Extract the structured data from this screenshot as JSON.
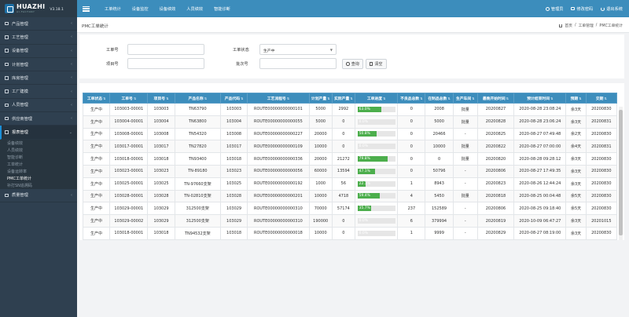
{
  "brand": {
    "name": "HUAZHI",
    "sub": "AI-FACTORY",
    "version": "V3.18.1"
  },
  "topnav": [
    "工单统计",
    "设备监控",
    "设备绩效",
    "人员绩效",
    "智能诊断"
  ],
  "user": {
    "name": "管理员",
    "change_password": "修改密码",
    "logout": "退出系统"
  },
  "sidebar": {
    "items_top": [
      "产品管理",
      "工艺管理",
      "设备管理",
      "计划管理",
      "库房管理",
      "工厂建模",
      "人员管理",
      "供应商管理"
    ],
    "active": "报表管理",
    "subitems": [
      "设备绩效",
      "人员绩效",
      "智能诊断",
      "工单统计",
      "设备运转率",
      "PMC工单统计",
      "补打SN追溯码"
    ],
    "active_sub": "PMC工单统计",
    "items_bottom": [
      "质量管理"
    ]
  },
  "page": {
    "title": "PMC工单统计",
    "breadcrumb": [
      "首页",
      "工单管理",
      "PMC工单统计"
    ]
  },
  "filter": {
    "work_order_no": "工单号",
    "work_order_status": "工单状态",
    "status_value": "生产中",
    "project_no": "项目号",
    "batch_no": "批次号",
    "query": "查询",
    "clear": "清空"
  },
  "colors": {
    "accent": "#3c8dbc",
    "sidebar": "#2f4050",
    "progress": "#4cae4c"
  },
  "table": {
    "headers": [
      "工单状态",
      "工单号",
      "项目号",
      "产品名称",
      "产品代码",
      "工艺流程号",
      "计划产量",
      "实际产量",
      "工单进度",
      "不良品总数",
      "在制品总数",
      "生产车间",
      "最晚开始时间",
      "预计结束时间",
      "预期",
      "交期"
    ],
    "rows": [
      [
        "生产中",
        "103003-00001",
        "103003",
        "TN63790",
        "103003",
        "ROUTE00000000000101",
        "5000",
        "2992",
        {
          "pct": 0.63,
          "label": "63.0%"
        },
        "0",
        "2008",
        "批量",
        "20200827",
        "2020-08-28 23:08:24",
        "余3天",
        "20200830"
      ],
      [
        "生产中",
        "103004-00001",
        "103004",
        "TN63800",
        "103004",
        "ROUTE00000000000055",
        "5000",
        "0",
        {
          "pct": 0.0,
          "label": "0.0%"
        },
        "0",
        "5000",
        "批量",
        "20200828",
        "2020-08-28 23:06:24",
        "余3天",
        "20200831"
      ],
      [
        "生产中",
        "103008-00001",
        "103008",
        "TN54320",
        "103008",
        "ROUTE00000000000227",
        "20000",
        "0",
        {
          "pct": 0.508,
          "label": "50.8%"
        },
        "0",
        "20466",
        "-",
        "20200825",
        "2020-08-27 07:49:48",
        "余2天",
        "20200830"
      ],
      [
        "生产中",
        "103017-00001",
        "103017",
        "TN27820",
        "103017",
        "ROUTE00000000000109",
        "10000",
        "0",
        {
          "pct": 0.0,
          "label": "0.0%"
        },
        "0",
        "10000",
        "批量",
        "20200822",
        "2020-08-27 07:00:00",
        "余4天",
        "20200831"
      ],
      [
        "生产中",
        "103018-00001",
        "103018",
        "TN93400",
        "103018",
        "ROUTE00000000000336",
        "20000",
        "21272",
        {
          "pct": 0.798,
          "label": "79.8%"
        },
        "0",
        "0",
        "批量",
        "20200820",
        "2020-08-28 09:28:12",
        "余3天",
        "20200830"
      ],
      [
        "生产中",
        "103023-00001",
        "103023",
        "TN-89180",
        "103023",
        "ROUTE00000000000056",
        "60000",
        "13594",
        {
          "pct": 0.471,
          "label": "47.1%"
        },
        "0",
        "50796",
        "-",
        "20200806",
        "2020-08-27 17:49:35",
        "余3天",
        "20200830"
      ],
      [
        "生产中",
        "103025-00001",
        "103025",
        "TN-97660支架",
        "103025",
        "ROUTE00000000000192",
        "1000",
        "56",
        {
          "pct": 0.22,
          "label": "22.1%"
        },
        "1",
        "8943",
        "-",
        "20200823",
        "2020-08-26 12:44:24",
        "余3天",
        "20200830"
      ],
      [
        "生产中",
        "103028-00001",
        "103028",
        "TN-02810支架",
        "103028",
        "ROUTE00000000000201",
        "10000",
        "4718",
        {
          "pct": 0.594,
          "label": "59.4%"
        },
        "4",
        "5450",
        "批量",
        "20200818",
        "2020-08-25 00:04:48",
        "余5天",
        "20200830"
      ],
      [
        "生产中",
        "103029-00001",
        "103029",
        "312500支架",
        "103029",
        "ROUTE00000000000310",
        "70000",
        "57174",
        {
          "pct": 0.357,
          "label": "35.7%"
        },
        "237",
        "152589",
        "-",
        "20200806",
        "2020-08-25 09:18:40",
        "余5天",
        "20200830"
      ],
      [
        "生产中",
        "103029-00002",
        "103029",
        "312500支架",
        "103029",
        "ROUTE00000000000310",
        "190000",
        "0",
        {
          "pct": 0.0,
          "label": "0.0%"
        },
        "6",
        "379994",
        "-",
        "20200819",
        "2020-10-09 06:47:27",
        "余3天",
        "20201015"
      ],
      [
        "生产中",
        "103018-00001",
        "103018",
        "TN94532支架",
        "103018",
        "ROUTE00000000000018",
        "10000",
        "0",
        {
          "pct": 0.0,
          "label": "0.0%"
        },
        "1",
        "9999",
        "-",
        "20200829",
        "2020-08-27 08:19:00",
        "余3天",
        "20200830"
      ]
    ]
  }
}
